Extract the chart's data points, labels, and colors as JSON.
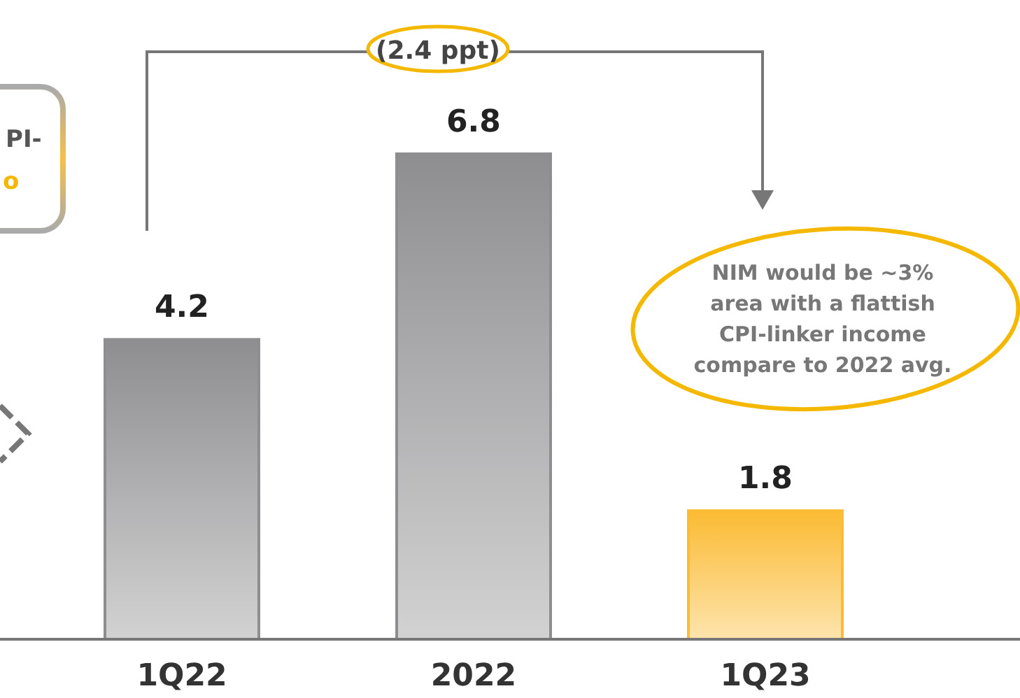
{
  "chart_data": {
    "type": "bar",
    "categories": [
      "1Q22",
      "2022",
      "1Q23"
    ],
    "values": [
      4.2,
      6.8,
      1.8
    ],
    "colors": [
      "#8e8e90",
      "#8e8e90",
      "#fbbb33"
    ],
    "data_labels": true,
    "annotations": [
      "(2.4 ppt)",
      "NIM would be ~3% area with a flattish CPI-linker income compare to 2022 avg.",
      "PI-",
      "o"
    ]
  }
}
